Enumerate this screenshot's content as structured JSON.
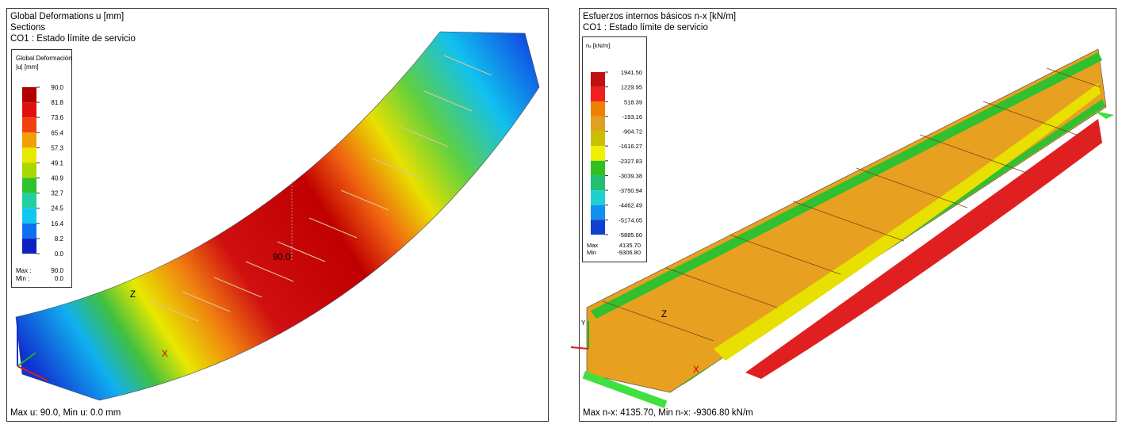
{
  "left_panel": {
    "title": "Global Deformations u [mm]",
    "subtitle": "Sections",
    "load_case": "CO1 : Estado límite de servicio",
    "legend": {
      "title_line1": "Global Deformación",
      "title_line2": "|u| [mm]",
      "labels": [
        "90.0",
        "81.8",
        "73.6",
        "65.4",
        "57.3",
        "49.1",
        "40.9",
        "32.7",
        "24.5",
        "16.4",
        "8.2",
        "0.0"
      ],
      "colors": [
        "#b00000",
        "#e01010",
        "#f04010",
        "#f0a000",
        "#e8e800",
        "#a8d800",
        "#30c030",
        "#20d0a0",
        "#10c8f0",
        "#1070f0",
        "#1020c0"
      ],
      "max_label": "Max :",
      "max_value": "90.0",
      "min_label": "Min :",
      "min_value": "0.0"
    },
    "annotation": "90.0",
    "axis_z": "Z",
    "axis_x": "X",
    "footer": "Max u: 90.0, Min u: 0.0 mm"
  },
  "right_panel": {
    "title": "Esfuerzos internos básicos n-x [kN/m]",
    "load_case": "CO1 : Estado límite de servicio",
    "legend": {
      "title": "nₓ [kN/m]",
      "labels": [
        "1941.50",
        "1229.95",
        "518.39",
        "-193.16",
        "-904.72",
        "-1616.27",
        "-2327.83",
        "-3039.38",
        "-3750.94",
        "-4462.49",
        "-5174.05",
        "-5885.60"
      ],
      "colors": [
        "#c01010",
        "#f02020",
        "#f08000",
        "#e0a020",
        "#c8c000",
        "#f0f000",
        "#30c020",
        "#20c070",
        "#20d0d0",
        "#1090f0",
        "#1040d0"
      ],
      "max_label": "Max",
      "max_value": "4135.70",
      "min_label": "Min",
      "min_value": "-9306.80"
    },
    "axis_z": "Z",
    "axis_x": "X",
    "axis_y": "Y",
    "footer": "Max n-x: 4135.70, Min n-x: -9306.80 kN/m"
  }
}
